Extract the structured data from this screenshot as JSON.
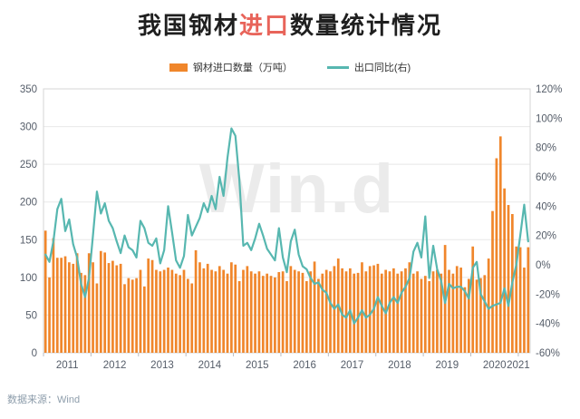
{
  "title": {
    "prefix": "我国钢材",
    "highlight": "进口",
    "suffix": "数量统计情况"
  },
  "legend": {
    "imports_label": "钢材进口数量（万吨）",
    "exports_label": "出口同比(右)"
  },
  "watermark": "Win.d",
  "source": "数据来源：Wind",
  "colors": {
    "bar": "#f0862b",
    "line": "#57b7b0",
    "title_highlight": "#e8645a",
    "axis_text": "#555d69",
    "grid": "#e8e8e8",
    "border": "#d6d6d6",
    "tick": "#b9bdc4",
    "watermark": "#ebebeb"
  },
  "chart_data": {
    "type": "bar+line (dual axis)",
    "frequency": "monthly",
    "x_start": "2011-01",
    "x_end": "2021-03",
    "x_year_labels": [
      "2011",
      "2012",
      "2013",
      "2014",
      "2015",
      "2016",
      "2017",
      "2018",
      "2019",
      "2020",
      "2021"
    ],
    "left_axis": {
      "title": "钢材进口数量（万吨）",
      "ticks": [
        0,
        50,
        100,
        150,
        200,
        250,
        300,
        350
      ],
      "range": [
        0,
        350
      ]
    },
    "right_axis": {
      "title": "出口同比(右)",
      "tick_labels": [
        "120%",
        "100%",
        "80%",
        "60%",
        "40%",
        "20%",
        "0%",
        "-20%",
        "-40%",
        "-60%"
      ],
      "range": [
        -60,
        120
      ]
    },
    "grid": "horizontal, at left-axis 50-unit steps",
    "legend_position": "top-center",
    "series": [
      {
        "name": "钢材进口数量（万吨）",
        "type": "bar",
        "axis": "left",
        "values": [
          162,
          100,
          152,
          126,
          126,
          128,
          120,
          118,
          132,
          106,
          103,
          132,
          120,
          92,
          135,
          133,
          119,
          122,
          116,
          118,
          91,
          99,
          97,
          99,
          110,
          88,
          125,
          123,
          110,
          108,
          110,
          113,
          110,
          105,
          103,
          110,
          98,
          92,
          136,
          120,
          112,
          118,
          110,
          108,
          115,
          110,
          105,
          120,
          117,
          95,
          110,
          115,
          108,
          105,
          108,
          102,
          105,
          102,
          100,
          107,
          108,
          95,
          115,
          110,
          108,
          106,
          95,
          108,
          121,
          98,
          105,
          110,
          108,
          115,
          125,
          112,
          108,
          112,
          105,
          106,
          120,
          108,
          115,
          116,
          118,
          105,
          110,
          108,
          112,
          105,
          108,
          112,
          120,
          105,
          108,
          98,
          102,
          95,
          108,
          110,
          105,
          143,
          110,
          105,
          115,
          113,
          87,
          98,
          141,
          97,
          99,
          103,
          125,
          188,
          258,
          287,
          218,
          196,
          184,
          141,
          140,
          113,
          140
        ]
      },
      {
        "name": "出口同比(右)",
        "type": "line",
        "axis": "right",
        "unit": "%",
        "values": [
          7,
          2,
          16,
          38,
          45,
          23,
          31,
          14,
          5,
          -13,
          -22,
          -9,
          20,
          50,
          35,
          42,
          30,
          25,
          16,
          8,
          20,
          12,
          10,
          5,
          30,
          25,
          15,
          13,
          18,
          1,
          10,
          40,
          22,
          3,
          -2,
          6,
          34,
          20,
          26,
          32,
          42,
          36,
          47,
          38,
          60,
          47,
          73,
          93,
          88,
          58,
          13,
          15,
          10,
          18,
          28,
          20,
          11,
          7,
          3,
          25,
          5,
          -5,
          16,
          24,
          7,
          -1,
          -3,
          -9,
          -13,
          -12,
          -17,
          -19,
          -26,
          -30,
          -27,
          -34,
          -36,
          -31,
          -40,
          -36,
          -31,
          -36,
          -34,
          -30,
          -22,
          -28,
          -33,
          -26,
          -22,
          -26,
          -19,
          -15,
          -9,
          9,
          15,
          5,
          33,
          -9,
          13,
          -3,
          -11,
          -26,
          -13,
          -16,
          -15,
          -15,
          -18,
          -23,
          -2,
          2,
          -20,
          -25,
          -30,
          -28,
          -27,
          -26,
          -16,
          -28,
          -12,
          0,
          20,
          41,
          16
        ]
      }
    ]
  }
}
